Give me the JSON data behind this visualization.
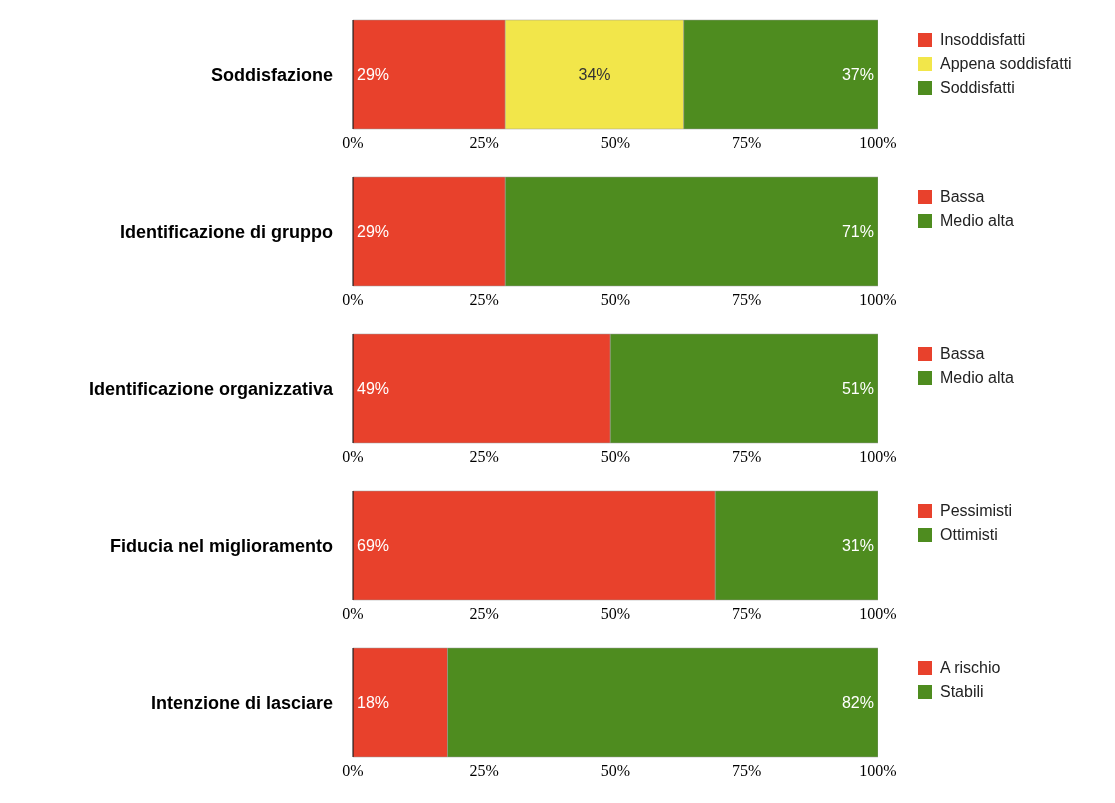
{
  "chart_data": [
    {
      "type": "bar",
      "orientation": "horizontal",
      "stacked": true,
      "categories": [
        "Soddisfazione"
      ],
      "xlim": [
        0,
        100
      ],
      "xticks": [
        {
          "value": 0,
          "label": "0%"
        },
        {
          "value": 25,
          "label": "25%"
        },
        {
          "value": 50,
          "label": "50%"
        },
        {
          "value": 75,
          "label": "75%"
        },
        {
          "value": 100,
          "label": "100%"
        }
      ],
      "legend": "right",
      "series": [
        {
          "name": "Insoddisfatti",
          "color": "#e8412c",
          "values": [
            29
          ],
          "value_labels": [
            "29%"
          ]
        },
        {
          "name": "Appena soddisfatti",
          "color": "#f2e64a",
          "values": [
            34
          ],
          "value_labels": [
            "34%"
          ]
        },
        {
          "name": "Soddisfatti",
          "color": "#4e8c1f",
          "values": [
            37
          ],
          "value_labels": [
            "37%"
          ]
        }
      ]
    },
    {
      "type": "bar",
      "orientation": "horizontal",
      "stacked": true,
      "categories": [
        "Identificazione di gruppo"
      ],
      "xlim": [
        0,
        100
      ],
      "xticks": [
        {
          "value": 0,
          "label": "0%"
        },
        {
          "value": 25,
          "label": "25%"
        },
        {
          "value": 50,
          "label": "50%"
        },
        {
          "value": 75,
          "label": "75%"
        },
        {
          "value": 100,
          "label": "100%"
        }
      ],
      "legend": "right",
      "series": [
        {
          "name": "Bassa",
          "color": "#e8412c",
          "values": [
            29
          ],
          "value_labels": [
            "29%"
          ]
        },
        {
          "name": "Medio alta",
          "color": "#4e8c1f",
          "values": [
            71
          ],
          "value_labels": [
            "71%"
          ]
        }
      ]
    },
    {
      "type": "bar",
      "orientation": "horizontal",
      "stacked": true,
      "categories": [
        "Identificazione organizzativa"
      ],
      "xlim": [
        0,
        100
      ],
      "xticks": [
        {
          "value": 0,
          "label": "0%"
        },
        {
          "value": 25,
          "label": "25%"
        },
        {
          "value": 50,
          "label": "50%"
        },
        {
          "value": 75,
          "label": "75%"
        },
        {
          "value": 100,
          "label": "100%"
        }
      ],
      "legend": "right",
      "series": [
        {
          "name": "Bassa",
          "color": "#e8412c",
          "values": [
            49
          ],
          "value_labels": [
            "49%"
          ]
        },
        {
          "name": "Medio alta",
          "color": "#4e8c1f",
          "values": [
            51
          ],
          "value_labels": [
            "51%"
          ]
        }
      ]
    },
    {
      "type": "bar",
      "orientation": "horizontal",
      "stacked": true,
      "categories": [
        "Fiducia nel miglioramento"
      ],
      "xlim": [
        0,
        100
      ],
      "xticks": [
        {
          "value": 0,
          "label": "0%"
        },
        {
          "value": 25,
          "label": "25%"
        },
        {
          "value": 50,
          "label": "50%"
        },
        {
          "value": 75,
          "label": "75%"
        },
        {
          "value": 100,
          "label": "100%"
        }
      ],
      "legend": "right",
      "series": [
        {
          "name": "Pessimisti",
          "color": "#e8412c",
          "values": [
            69
          ],
          "value_labels": [
            "69%"
          ]
        },
        {
          "name": "Ottimisti",
          "color": "#4e8c1f",
          "values": [
            31
          ],
          "value_labels": [
            "31%"
          ]
        }
      ]
    },
    {
      "type": "bar",
      "orientation": "horizontal",
      "stacked": true,
      "categories": [
        "Intenzione di lasciare"
      ],
      "xlim": [
        0,
        100
      ],
      "xticks": [
        {
          "value": 0,
          "label": "0%"
        },
        {
          "value": 25,
          "label": "25%"
        },
        {
          "value": 50,
          "label": "50%"
        },
        {
          "value": 75,
          "label": "75%"
        },
        {
          "value": 100,
          "label": "100%"
        }
      ],
      "legend": "right",
      "series": [
        {
          "name": "A rischio",
          "color": "#e8412c",
          "values": [
            18
          ],
          "value_labels": [
            "18%"
          ]
        },
        {
          "name": "Stabili",
          "color": "#4e8c1f",
          "values": [
            82
          ],
          "value_labels": [
            "82%"
          ]
        }
      ]
    }
  ]
}
